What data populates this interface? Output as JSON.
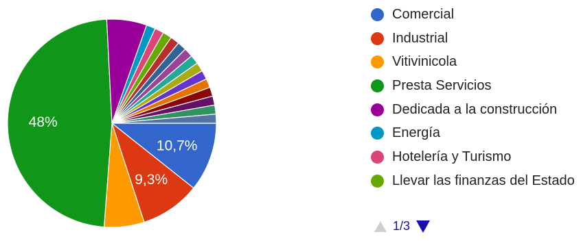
{
  "chart_data": {
    "type": "pie",
    "slices": [
      {
        "label": "Comercial",
        "value": 10.7,
        "color": "#3366cc",
        "data_label": "10,7%"
      },
      {
        "label": "Industrial",
        "value": 9.3,
        "color": "#dc3912",
        "data_label": "9,3%"
      },
      {
        "label": "Vitivinicola",
        "value": 6.2,
        "color": "#ff9900",
        "data_label": ""
      },
      {
        "label": "Presta Servicios",
        "value": 48,
        "color": "#109618",
        "data_label": "48%"
      },
      {
        "label": "Dedicada a la construcción",
        "value": 6.2,
        "color": "#990099",
        "data_label": ""
      },
      {
        "label": "Energía",
        "value": 1.4,
        "color": "#0099c6",
        "data_label": ""
      },
      {
        "label": "Hotelería y Turismo",
        "value": 1.4,
        "color": "#dd4477",
        "data_label": ""
      },
      {
        "label": "Llevar las finanzas del Estado",
        "value": 1.4,
        "color": "#66aa00",
        "data_label": ""
      },
      {
        "label": "",
        "value": 1.4,
        "color": "#b82e2e",
        "data_label": ""
      },
      {
        "label": "",
        "value": 1.4,
        "color": "#316395",
        "data_label": ""
      },
      {
        "label": "",
        "value": 1.4,
        "color": "#994499",
        "data_label": ""
      },
      {
        "label": "",
        "value": 1.4,
        "color": "#22aa99",
        "data_label": ""
      },
      {
        "label": "",
        "value": 1.4,
        "color": "#aaaa11",
        "data_label": ""
      },
      {
        "label": "",
        "value": 1.4,
        "color": "#6633cc",
        "data_label": ""
      },
      {
        "label": "",
        "value": 1.4,
        "color": "#e67300",
        "data_label": ""
      },
      {
        "label": "",
        "value": 1.4,
        "color": "#8b0707",
        "data_label": ""
      },
      {
        "label": "",
        "value": 1.4,
        "color": "#651067",
        "data_label": ""
      },
      {
        "label": "",
        "value": 1.4,
        "color": "#329262",
        "data_label": ""
      },
      {
        "label": "",
        "value": 1.4,
        "color": "#5574a6",
        "data_label": ""
      }
    ],
    "legend_position": "right"
  },
  "pager": {
    "text": "1/3"
  }
}
